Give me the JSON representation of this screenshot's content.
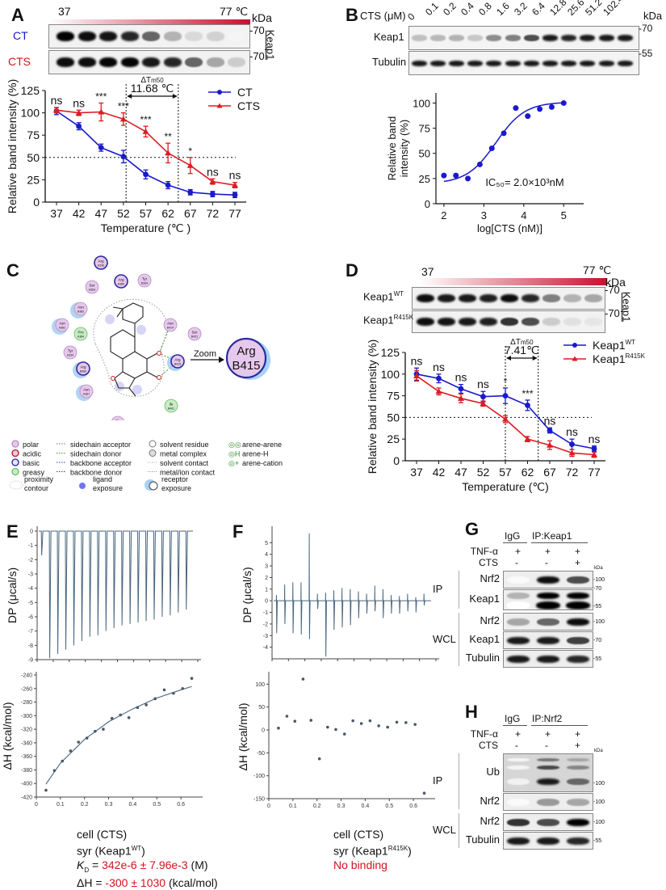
{
  "panels": {
    "A": {
      "label": "A",
      "blot": {
        "temp_start": "37",
        "temp_end": "77 ℃",
        "kda": "kDa",
        "rows": [
          {
            "name": "CT",
            "color": "#1a1acc",
            "marker": "70",
            "intensities": [
              1.0,
              0.95,
              0.92,
              0.85,
              0.6,
              0.3,
              0.15,
              0.18,
              0.04
            ]
          },
          {
            "name": "CTS",
            "color": "#d0141e",
            "marker": "70",
            "intensities": [
              0.95,
              0.95,
              0.98,
              0.98,
              0.9,
              0.85,
              0.6,
              0.35,
              0.2
            ]
          }
        ],
        "protein": "Keap1"
      }
    },
    "B": {
      "label": "B",
      "blot": {
        "conc_label": "CTS (μM)",
        "concentrations": [
          "0",
          "0.1",
          "0.2",
          "0.4",
          "0.8",
          "1.6",
          "3.2",
          "6.4",
          "12.8",
          "25.6",
          "51.2",
          "102.4"
        ],
        "kda": "kDa",
        "rows": [
          {
            "name": "Keap1",
            "marker": "70",
            "intensities": [
              0.25,
              0.28,
              0.3,
              0.22,
              0.45,
              0.5,
              0.7,
              0.9,
              0.85,
              0.9,
              0.9,
              0.9
            ]
          },
          {
            "name": "Tubulin",
            "marker": "55",
            "intensities": [
              0.9,
              0.9,
              0.9,
              0.9,
              0.9,
              0.9,
              0.9,
              0.9,
              0.9,
              0.9,
              0.9,
              0.9
            ]
          }
        ]
      },
      "annotation": "IC₅₀= 2.0×10³nM"
    },
    "C": {
      "label": "C",
      "zoom_label": "Zoom",
      "zoom_residue": {
        "name": "Arg",
        "id": "B415"
      },
      "residues": [
        {
          "name": "Arg",
          "id": "A336",
          "type": "basic"
        },
        {
          "name": "Arg",
          "id": "A380",
          "type": "basic"
        },
        {
          "name": "Tyr",
          "id": "B334",
          "type": "polar"
        },
        {
          "name": "Ser",
          "id": "A363",
          "type": "polar"
        },
        {
          "name": "Asn",
          "id": "B382",
          "type": "polar"
        },
        {
          "name": "Asn",
          "id": "A382",
          "type": "polar"
        },
        {
          "name": "Pro",
          "id": "A384",
          "type": "greasy"
        },
        {
          "name": "Tyr",
          "id": "A334",
          "type": "polar"
        },
        {
          "name": "Arg",
          "id": "B380",
          "type": "basic"
        },
        {
          "name": "Asn",
          "id": "A387",
          "type": "polar"
        },
        {
          "name": "Asn",
          "id": "B414",
          "type": "polar"
        },
        {
          "name": "Ser",
          "id": "B431",
          "type": "polar"
        },
        {
          "name": "Arg",
          "id": "B415",
          "type": "basic"
        },
        {
          "name": "Ile",
          "id": "B461",
          "type": "greasy"
        },
        {
          "name": "Gly",
          "id": "B462",
          "type": "polar"
        }
      ],
      "legend": {
        "col1": [
          "polar",
          "acidic",
          "basic",
          "greasy"
        ],
        "col2": [
          "sidechain acceptor",
          "sidechain donor",
          "backbone acceptor",
          "backbone donor"
        ],
        "col3": [
          "solvent residue",
          "metal complex",
          "solvent contact",
          "metal/ion contact"
        ],
        "col4": [
          "arene-arene",
          "arene-H",
          "arene-cation"
        ],
        "bottom": [
          "proximity contour",
          "ligand exposure",
          "receptor exposure"
        ]
      }
    },
    "D": {
      "label": "D",
      "blot": {
        "temp_start": "37",
        "temp_end": "77 ℃",
        "kda": "kDa",
        "rows": [
          {
            "name": "Keap1",
            "sup": "WT",
            "marker": "70",
            "intensities": [
              0.95,
              0.9,
              0.9,
              0.88,
              0.95,
              0.85,
              0.5,
              0.3,
              0.35
            ]
          },
          {
            "name": "Keap1",
            "sup": "R415K",
            "marker": "70",
            "intensities": [
              0.95,
              0.92,
              0.9,
              0.88,
              0.8,
              0.7,
              0.2,
              0.12,
              0.1
            ]
          }
        ],
        "protein": "Keap1"
      }
    },
    "E": {
      "label": "E",
      "info": {
        "cell": "cell (CTS)",
        "syr": "syr (Keap1",
        "syr_sup": "WT",
        "syr_end": ")",
        "kd_label": "K",
        "kd_sub": "D",
        "kd_eq": " = ",
        "kd_value": "342e-6 ± 7.96e-3",
        "kd_unit": " (M)",
        "dh_label": "ΔH = ",
        "dh_value": "-300 ± 1030",
        "dh_unit": " (kcal/mol)"
      }
    },
    "F": {
      "label": "F",
      "info": {
        "cell": "cell (CTS)",
        "syr": "syr (Keap1",
        "syr_sup": "R415K",
        "syr_end": ")",
        "result": "No binding"
      }
    },
    "G": {
      "label": "G",
      "group1": "IgG",
      "group2": "IP:Keap1",
      "treatments": [
        {
          "name": "TNF-α",
          "values": [
            "+",
            "+",
            "+"
          ]
        },
        {
          "name": "CTS",
          "values": [
            "-",
            "-",
            "+"
          ]
        }
      ],
      "kda": "kDa",
      "sections": [
        {
          "name": "IP",
          "rows": [
            {
              "name": "Nrf2",
              "markers": [
                "100"
              ],
              "intensities": [
                0.02,
                0.95,
                0.7
              ]
            },
            {
              "name": "Keap1",
              "markers": [
                "70",
                "55"
              ],
              "intensities": [
                0.3,
                1.0,
                1.0
              ]
            }
          ]
        },
        {
          "name": "WCL",
          "rows": [
            {
              "name": "Nrf2",
              "markers": [
                "100"
              ],
              "intensities": [
                0.35,
                0.6,
                0.95
              ]
            },
            {
              "name": "Keap1",
              "markers": [
                "70"
              ],
              "intensities": [
                0.9,
                0.9,
                0.75
              ]
            },
            {
              "name": "Tubulin",
              "markers": [
                "55"
              ],
              "intensities": [
                0.9,
                0.9,
                0.85
              ]
            }
          ]
        }
      ]
    },
    "H": {
      "label": "H",
      "group1": "IgG",
      "group2": "IP:Nrf2",
      "treatments": [
        {
          "name": "TNF-α",
          "values": [
            "+",
            "+",
            "+"
          ]
        },
        {
          "name": "CTS",
          "values": [
            "-",
            "-",
            "+"
          ]
        }
      ],
      "kda": "kDa",
      "sections": [
        {
          "name": "IP",
          "rows": [
            {
              "name": "Ub",
              "markers": [
                "100"
              ],
              "intensities": [
                0.05,
                0.9,
                0.6
              ]
            },
            {
              "name": "Nrf2",
              "markers": [
                "100"
              ],
              "intensities": [
                0.02,
                0.4,
                0.35
              ]
            }
          ]
        },
        {
          "name": "WCL",
          "rows": [
            {
              "name": "Nrf2",
              "markers": [
                "100"
              ],
              "intensities": [
                0.8,
                0.7,
                1.0
              ]
            },
            {
              "name": "Tubulin",
              "markers": [
                "55"
              ],
              "intensities": [
                0.9,
                0.9,
                0.85
              ]
            }
          ]
        }
      ]
    }
  },
  "chart_data": [
    {
      "id": "A",
      "type": "line",
      "title": "",
      "xlabel": "Temperature (℃ )",
      "ylabel": "Relative band intensity (%)",
      "x": [
        37,
        42,
        47,
        52,
        57,
        62,
        67,
        72,
        77
      ],
      "xticks": [
        "37",
        "42",
        "47",
        "52",
        "57",
        "62",
        "67",
        "72",
        "77"
      ],
      "yticks": [
        "0",
        "25",
        "50",
        "75",
        "100",
        "125"
      ],
      "ylim": [
        0,
        125
      ],
      "series": [
        {
          "name": "CT",
          "color": "#1a1acc",
          "marker": "circle",
          "values": [
            102,
            85,
            61,
            51,
            31,
            19,
            11,
            9,
            8
          ],
          "errors": [
            4,
            4,
            4,
            7,
            5,
            4,
            3,
            3,
            3
          ]
        },
        {
          "name": "CTS",
          "color": "#dd1c24",
          "marker": "triangle",
          "values": [
            103,
            100,
            101,
            93,
            79,
            55,
            41,
            23,
            19
          ],
          "errors": [
            3,
            3,
            10,
            7,
            6,
            11,
            9,
            3,
            3
          ]
        }
      ],
      "significance": [
        "ns",
        "ns",
        "***",
        "***",
        "***",
        "**",
        "*",
        "ns",
        "ns"
      ],
      "reference_line_y": 50,
      "tm_lines_x": [
        52.6,
        64.3
      ],
      "delta_label": "ΔT",
      "delta_sub": "m50",
      "delta_value": "11.68 ℃",
      "legend": "top-right"
    },
    {
      "id": "B",
      "type": "scatter",
      "title": "",
      "xlabel": "log[CTS (nM)]",
      "ylabel": "Relative band intensity (%)",
      "x": [
        2.0,
        2.3,
        2.6,
        2.9,
        3.2,
        3.5,
        3.8,
        4.1,
        4.4,
        4.7,
        5.0
      ],
      "values": [
        28,
        28,
        25,
        39,
        55,
        70,
        95,
        87,
        94,
        96,
        100
      ],
      "fit": {
        "bottom": 20,
        "top": 101,
        "logIC50": 3.3,
        "hill": 1.2
      },
      "xticks": [
        "2",
        "3",
        "4",
        "5"
      ],
      "yticks": [
        "0",
        "25",
        "50",
        "75",
        "100"
      ],
      "xlim": [
        1.8,
        5.5
      ],
      "ylim": [
        0,
        110
      ],
      "color": "#1a1acc"
    },
    {
      "id": "D",
      "type": "line",
      "title": "",
      "xlabel": "Temperature (℃)",
      "ylabel": "Relative band intensity (%)",
      "x": [
        37,
        42,
        47,
        52,
        57,
        62,
        67,
        72,
        77
      ],
      "xticks": [
        "37",
        "42",
        "47",
        "52",
        "57",
        "62",
        "67",
        "72",
        "77"
      ],
      "yticks": [
        "0",
        "25",
        "50",
        "75",
        "100",
        "125"
      ],
      "ylim": [
        0,
        125
      ],
      "series": [
        {
          "name": "Keap1",
          "sup": "WT",
          "color": "#1a1acc",
          "marker": "circle",
          "values": [
            100,
            95,
            83,
            74,
            75,
            64,
            35,
            19,
            14
          ],
          "errors": [
            7,
            5,
            5,
            6,
            9,
            6,
            3,
            6,
            3
          ]
        },
        {
          "name": "Keap1",
          "sup": "R415K",
          "color": "#dd1c24",
          "marker": "triangle",
          "values": [
            98,
            80,
            72,
            66,
            48,
            25,
            18,
            9,
            7
          ],
          "errors": [
            6,
            4,
            5,
            3,
            4,
            3,
            5,
            4,
            3
          ]
        }
      ],
      "significance": [
        "ns",
        "ns",
        "ns",
        "ns",
        "*",
        "***",
        "ns",
        "ns",
        "ns"
      ],
      "reference_line_y": 50,
      "tm_lines_x": [
        57,
        64.4
      ],
      "delta_label": "ΔT",
      "delta_sub": "m50",
      "delta_value": "7.41℃",
      "legend": "top-right"
    },
    {
      "id": "E-top",
      "type": "line",
      "xlabel": "Time (min)",
      "ylabel": "DP (μcal/s)",
      "xlim": [
        0,
        50
      ],
      "ylim": [
        -9,
        0
      ],
      "xticks": [
        "0",
        "5",
        "10",
        "15",
        "20",
        "25",
        "30",
        "35",
        "40",
        "45",
        "50"
      ],
      "yticks": [
        "0",
        "-1",
        "-2",
        "-3",
        "-4",
        "-5",
        "-6",
        "-7",
        "-8",
        "-9"
      ],
      "injection_times": [
        1.3,
        3.8,
        6.3,
        8.8,
        11.3,
        13.8,
        16.3,
        18.8,
        21.3,
        23.8,
        26.3,
        28.8,
        31.3,
        33.8,
        36.3,
        38.8,
        41.3,
        43.8,
        46.3
      ],
      "peak_values": [
        -1.7,
        -8.9,
        -8.6,
        -8.3,
        -8.0,
        -7.7,
        -7.4,
        -7.3,
        -7.0,
        -6.8,
        -6.6,
        -6.5,
        -6.4,
        -6.3,
        -6.2,
        -6.0,
        -5.9,
        -5.7,
        -5.5
      ]
    },
    {
      "id": "E-bottom",
      "type": "scatter",
      "xlabel": "Molar Ratio",
      "ylabel": "ΔH (kcal/mol)",
      "xlim": [
        0,
        0.67
      ],
      "ylim": [
        -420,
        -240
      ],
      "xticks": [
        "0",
        "0.1",
        "0.2",
        "0.3",
        "0.4",
        "0.5",
        "0.6"
      ],
      "yticks": [
        "-240",
        "-260",
        "-280",
        "-300",
        "-320",
        "-340",
        "-360",
        "-380",
        "-400",
        "-420"
      ],
      "x": [
        0.04,
        0.075,
        0.108,
        0.142,
        0.175,
        0.21,
        0.244,
        0.278,
        0.314,
        0.349,
        0.384,
        0.42,
        0.456,
        0.493,
        0.531,
        0.569,
        0.607,
        0.645
      ],
      "values": [
        -410,
        -381,
        -367,
        -352,
        -339,
        -333,
        -323,
        -320,
        -304,
        -299,
        -303,
        -288,
        -284,
        -275,
        -262,
        -267,
        -260,
        -245
      ],
      "fit_x": [
        0.04,
        0.1,
        0.2,
        0.3,
        0.4,
        0.5,
        0.6,
        0.645
      ],
      "fit_values": [
        -401,
        -370,
        -335,
        -309,
        -290,
        -274,
        -262,
        -257
      ]
    },
    {
      "id": "F-top",
      "type": "line",
      "xlabel": "Time (min)",
      "ylabel": "DP (μcal/s)",
      "xlim": [
        0,
        50
      ],
      "ylim": [
        -5,
        6
      ],
      "xticks": [
        "0",
        "5",
        "10",
        "15",
        "20",
        "25",
        "30",
        "35",
        "40",
        "45",
        "50"
      ],
      "yticks": [
        "5",
        "4",
        "3",
        "2",
        "1",
        "0",
        "-1",
        "-2",
        "-3",
        "-4"
      ],
      "injection_times": [
        1.3,
        3.8,
        6.3,
        8.8,
        11.3,
        13.8,
        16.3,
        18.8,
        21.3,
        23.8,
        26.3,
        28.8,
        31.3,
        33.8,
        36.3,
        38.8,
        41.3,
        43.8,
        46.3
      ],
      "peak_up": [
        0.5,
        1.4,
        1.6,
        1.6,
        5.8,
        0.6,
        0.7,
        0.9,
        1.1,
        1.0,
        0.8,
        0.6,
        1.3,
        1.0,
        0.5,
        0.4,
        0.6,
        0.3,
        0.6
      ],
      "peak_down": [
        -2.8,
        -2.0,
        -2.8,
        -2.9,
        -3.3,
        -0.7,
        -4.8,
        -2.5,
        -2.3,
        -2.1,
        -1.5,
        -1.1,
        -0.9,
        -1.5,
        -1.1,
        -1.1,
        -0.9,
        -1.0,
        -0.4
      ]
    },
    {
      "id": "F-bottom",
      "type": "scatter",
      "xlabel": "Molar Ratio",
      "ylabel": "ΔH (kcal/mol)",
      "xlim": [
        0,
        0.67
      ],
      "ylim": [
        -150,
        120
      ],
      "xticks": [
        "0",
        "0.1",
        "0.2",
        "0.3",
        "0.4",
        "0.5",
        "0.6"
      ],
      "yticks": [
        "100",
        "50",
        "0",
        "-50",
        "-100",
        "-150"
      ],
      "x": [
        0.04,
        0.075,
        0.108,
        0.142,
        0.175,
        0.21,
        0.244,
        0.278,
        0.314,
        0.349,
        0.384,
        0.42,
        0.456,
        0.493,
        0.531,
        0.569,
        0.607,
        0.645
      ],
      "values": [
        4,
        30,
        19,
        111,
        21,
        -63,
        6,
        1,
        -9,
        20,
        14,
        20,
        9,
        6,
        17,
        16,
        12,
        -138
      ]
    }
  ]
}
